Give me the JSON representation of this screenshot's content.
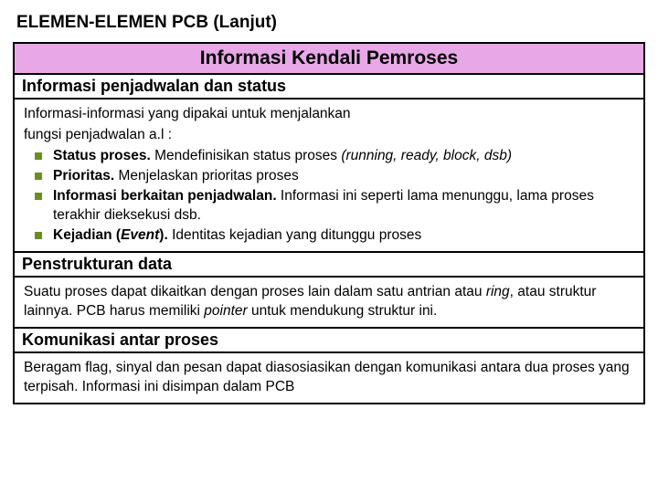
{
  "slide_title": "ELEMEN-ELEMEN PCB (Lanjut)",
  "banner": "Informasi Kendali Pemroses",
  "sec1": {
    "heading": "Informasi penjadwalan dan status",
    "intro1": "Informasi-informasi yang dipakai untuk menjalankan",
    "intro2": "fungsi penjadwalan a.l :",
    "items": [
      {
        "bold": "Status proses.",
        "rest": " Mendefinisikan status proses ",
        "italic": "(running, ready, block, dsb)"
      },
      {
        "bold": "Prioritas.",
        "rest": " Menjelaskan prioritas proses",
        "italic": ""
      },
      {
        "bold": "Informasi berkaitan penjadwalan.",
        "rest": " Informasi ini seperti lama menunggu, lama proses terakhir dieksekusi dsb.",
        "italic": ""
      },
      {
        "bold": "Kejadian (",
        "bold_italic": "Event",
        "bold2": ").",
        "rest": " Identitas kejadian yang ditunggu proses",
        "italic": ""
      }
    ]
  },
  "sec2": {
    "heading": "Penstrukturan data",
    "body_a": "Suatu proses dapat dikaitkan dengan proses lain dalam satu antrian atau ",
    "body_ital": "ring",
    "body_b": ", atau struktur lainnya. PCB harus memiliki ",
    "body_ital2": "pointer",
    "body_c": " untuk mendukung struktur ini."
  },
  "sec3": {
    "heading": "Komunikasi antar proses",
    "body": "Beragam flag, sinyal dan pesan dapat diasosiasikan dengan komunikasi antara dua proses yang terpisah. Informasi ini disimpan dalam PCB"
  },
  "colors": {
    "banner_bg": "#e8a8e8",
    "bullet": "#6b8e23",
    "border": "#000000"
  }
}
